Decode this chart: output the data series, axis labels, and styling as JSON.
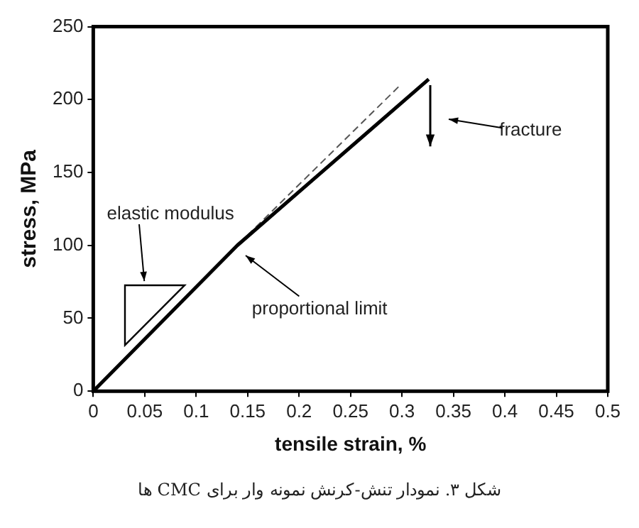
{
  "chart_data": {
    "type": "line",
    "xlabel": "tensile strain, %",
    "ylabel": "stress, MPa",
    "xlim": [
      0,
      0.5
    ],
    "xticks": [
      0,
      0.05,
      0.1,
      0.15,
      0.2,
      0.25,
      0.3,
      0.35,
      0.4,
      0.45,
      0.5
    ],
    "ylim": [
      0,
      250
    ],
    "yticks": [
      0,
      50,
      100,
      150,
      200,
      250
    ],
    "grid": false,
    "legend": false,
    "marker": "none",
    "series": [
      {
        "color": "#000000",
        "x": [
          0,
          0.14,
          0.326
        ],
        "values": [
          0,
          100,
          214
        ],
        "line_style": "solid"
      },
      {
        "color": "#555555",
        "x": [
          0.15,
          0.297
        ],
        "values": [
          107,
          209
        ],
        "line_style": "dashed"
      }
    ],
    "annotations": [
      "elastic modulus",
      "proportional limit",
      "fracture",
      "شکل ۳. نمودار تنش-کرنش نمونه وار برای CMC ها"
    ]
  }
}
